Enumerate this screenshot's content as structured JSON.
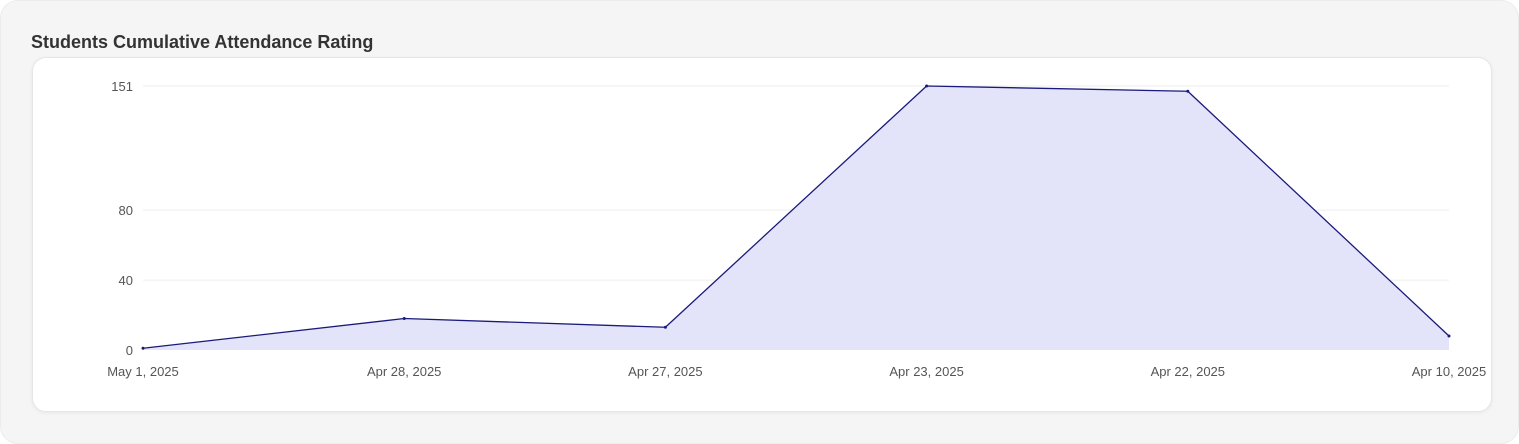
{
  "title": "Students Cumulative Attendance Rating",
  "colors": {
    "line": "#1a1a7a",
    "fill": "#e3e3fa",
    "grid": "#eeeeee"
  },
  "chart_data": {
    "type": "area",
    "title": "Students Cumulative Attendance Rating",
    "xlabel": "",
    "ylabel": "",
    "categories": [
      "May 1, 2025",
      "Apr 28, 2025",
      "Apr 27, 2025",
      "Apr 23, 2025",
      "Apr 22, 2025",
      "Apr 10, 2025"
    ],
    "series": [
      {
        "values": [
          1,
          18,
          13,
          151,
          148,
          8
        ]
      }
    ],
    "yticks": [
      0,
      40,
      80,
      151
    ],
    "ylim": [
      0,
      151
    ],
    "grid": true,
    "legend": "none"
  }
}
